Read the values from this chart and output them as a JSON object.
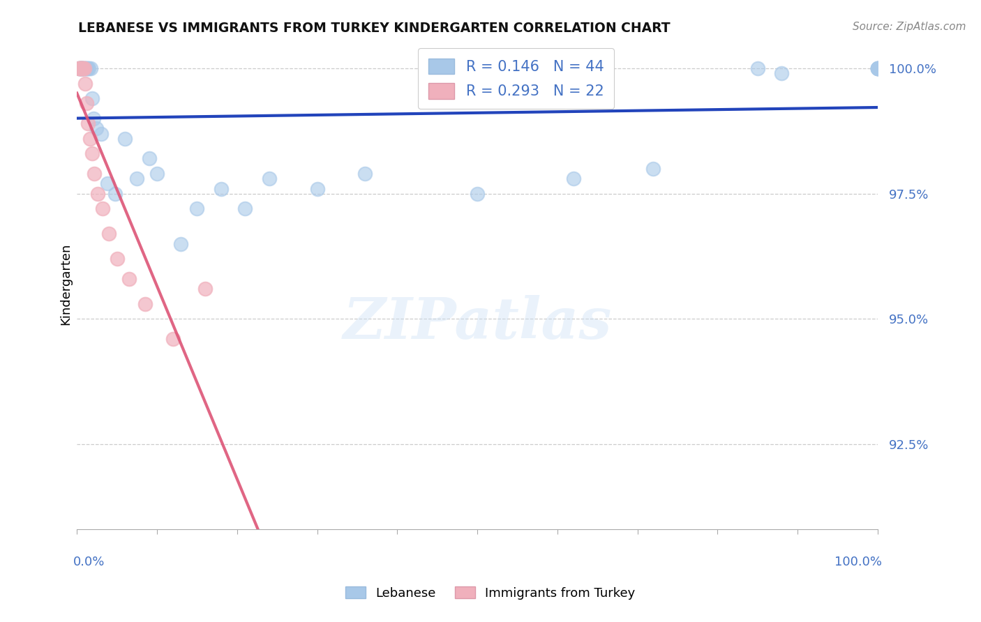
{
  "title": "LEBANESE VS IMMIGRANTS FROM TURKEY KINDERGARTEN CORRELATION CHART",
  "source": "Source: ZipAtlas.com",
  "ylabel": "Kindergarten",
  "watermark": "ZIPatlas",
  "blue_label": "Lebanese",
  "pink_label": "Immigrants from Turkey",
  "blue_R": "0.146",
  "blue_N": 44,
  "pink_R": "0.293",
  "pink_N": 22,
  "blue_color": "#a8c8e8",
  "pink_color": "#f0b0bc",
  "blue_line_color": "#2244bb",
  "pink_line_color": "#dd5577",
  "xlim": [
    0,
    1.0
  ],
  "ylim": [
    0.908,
    1.006
  ],
  "yticks": [
    0.925,
    0.95,
    0.975,
    1.0
  ],
  "ytick_labels": [
    "92.5%",
    "95.0%",
    "97.5%",
    "100.0%"
  ],
  "blue_x": [
    0.002,
    0.003,
    0.004,
    0.005,
    0.005,
    0.006,
    0.006,
    0.007,
    0.007,
    0.008,
    0.009,
    0.01,
    0.011,
    0.012,
    0.014,
    0.015,
    0.017,
    0.019,
    0.021,
    0.024,
    0.03,
    0.038,
    0.048,
    0.06,
    0.075,
    0.09,
    0.1,
    0.13,
    0.15,
    0.18,
    0.21,
    0.24,
    0.3,
    0.36,
    0.5,
    0.62,
    0.72,
    0.85,
    0.88,
    1.0,
    1.0,
    1.0,
    1.0,
    1.0
  ],
  "blue_y": [
    1.0,
    1.0,
    1.0,
    1.0,
    1.0,
    1.0,
    1.0,
    1.0,
    1.0,
    1.0,
    1.0,
    1.0,
    1.0,
    1.0,
    1.0,
    1.0,
    1.0,
    0.994,
    0.99,
    0.988,
    0.987,
    0.977,
    0.975,
    0.986,
    0.978,
    0.982,
    0.979,
    0.965,
    0.972,
    0.976,
    0.972,
    0.978,
    0.976,
    0.979,
    0.975,
    0.978,
    0.98,
    1.0,
    0.999,
    1.0,
    1.0,
    1.0,
    1.0,
    1.0
  ],
  "pink_x": [
    0.002,
    0.003,
    0.004,
    0.005,
    0.006,
    0.007,
    0.008,
    0.009,
    0.01,
    0.012,
    0.014,
    0.016,
    0.019,
    0.022,
    0.026,
    0.032,
    0.04,
    0.05,
    0.065,
    0.085,
    0.12,
    0.16
  ],
  "pink_y": [
    1.0,
    1.0,
    1.0,
    1.0,
    1.0,
    1.0,
    1.0,
    1.0,
    0.997,
    0.993,
    0.989,
    0.986,
    0.983,
    0.979,
    0.975,
    0.972,
    0.967,
    0.962,
    0.958,
    0.953,
    0.946,
    0.956
  ]
}
